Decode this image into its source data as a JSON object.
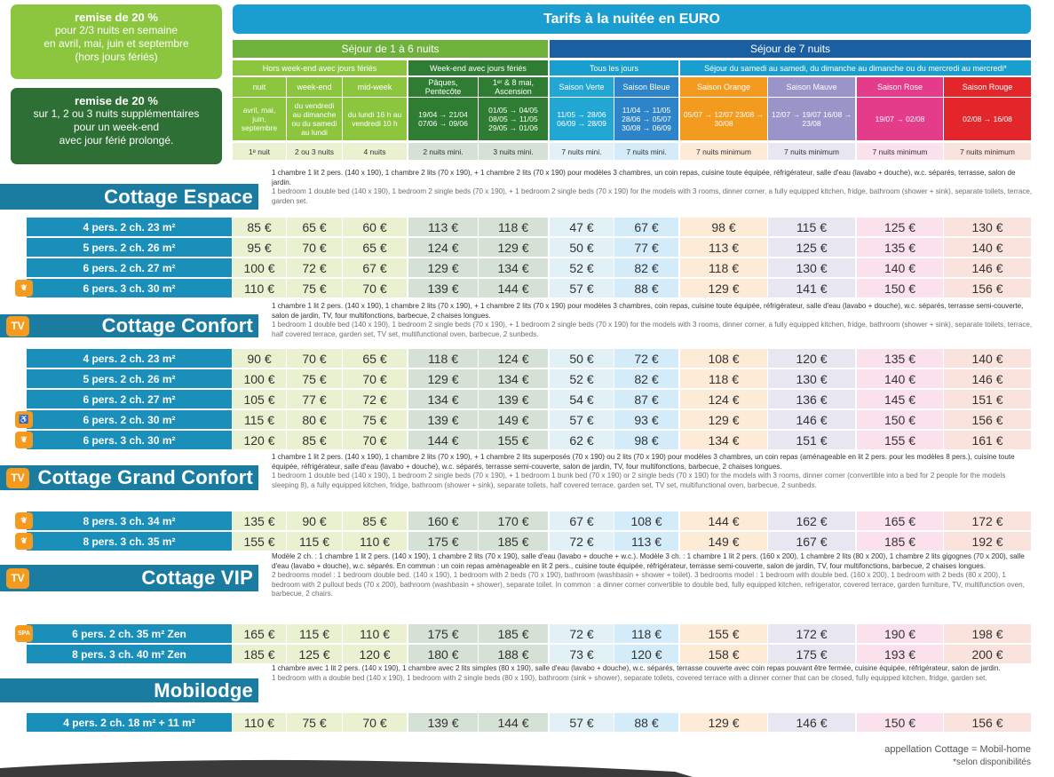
{
  "promo1": {
    "title": "remise de 20 %",
    "lines": [
      "pour 2/3 nuits en semaine",
      "en avril, mai, juin et septembre",
      "(hors jours fériés)"
    ]
  },
  "promo2": {
    "title": "remise de 20 %",
    "lines": [
      "sur 1, 2 ou 3 nuits supplémentaires",
      "pour un week-end",
      "avec jour férié prolongé."
    ]
  },
  "header": {
    "title": "Tarifs à la nuitée en EURO",
    "group1": "Séjour de 1 à 6 nuits",
    "group2": "Séjour de 7 nuits",
    "sub1": "Hors week-end avec jours fériés",
    "sub2": "Week-end avec jours fériés",
    "sub3": "Tous les jours",
    "sub4": "Séjour du samedi au samedi, du dimanche au dimanche ou du mercredi au mercredi*"
  },
  "columns": [
    {
      "name": "nuit",
      "period": "avril, mai, juin, septembre",
      "minimum": "1ᵉ nuit"
    },
    {
      "name": "week-end",
      "period": "du vendredi au dimanche ou du samedi au lundi",
      "minimum": "2 ou 3 nuits"
    },
    {
      "name": "mid-week",
      "period": "du lundi 16 h au vendredi 10 h",
      "minimum": "4 nuits"
    },
    {
      "name": "Pâques, Pentecôte",
      "period": "19/04 → 21/04 07/06 → 09/06",
      "minimum": "2 nuits mini."
    },
    {
      "name": "1ᵉʳ & 8 mai, Ascension",
      "period": "01/05 → 04/05 08/05 → 11/05 29/05 → 01/06",
      "minimum": "3 nuits mini."
    },
    {
      "name": "Saison Verte",
      "period": "11/05 → 28/06 06/09 → 28/09",
      "minimum": "7 nuits mini."
    },
    {
      "name": "Saison Bleue",
      "period": "11/04 → 11/05 28/06 → 05/07 30/08 → 06/09",
      "minimum": "7 nuits mini."
    },
    {
      "name": "Saison Orange",
      "period": "05/07 → 12/07 23/08 → 30/08",
      "minimum": "7 nuits minimum"
    },
    {
      "name": "Saison Mauve",
      "period": "12/07 → 19/07 16/08 → 23/08",
      "minimum": "7 nuits minimum"
    },
    {
      "name": "Saison Rose",
      "period": "19/07 → 02/08",
      "minimum": "7 nuits minimum"
    },
    {
      "name": "Saison Rouge",
      "period": "02/08 → 16/08",
      "minimum": "7 nuits minimum"
    }
  ],
  "sections": [
    {
      "title": "Cottage Espace",
      "tv": "",
      "desc_fr": "1 chambre 1 lit 2 pers. (140 x 190), 1 chambre 2 lits (70 x 190), + 1 chambre 2 lits (70 x 190) pour modèles 3 chambres, un coin repas, cuisine toute équipée, réfrigérateur, salle d'eau (lavabo + douche), w.c. séparés, terrasse, salon de jardin.",
      "desc_en": "1 bedroom 1 double bed (140 x 190), 1 bedroom 2 single beds (70 x 190), + 1 bedroom 2 single beds (70 x 190) for the models with 3 rooms, dinner corner, a fully equipped kitchen, fridge, bathroom (shower + sink), separate toilets, terrace, garden set.",
      "rows": [
        {
          "label": "4 pers. 2 ch. 23 m²",
          "icon": "",
          "prices": [
            "85 €",
            "65 €",
            "60 €",
            "113 €",
            "118 €",
            "47 €",
            "67 €",
            "98 €",
            "115 €",
            "125 €",
            "130 €"
          ]
        },
        {
          "label": "5 pers. 2 ch. 26 m²",
          "icon": "",
          "prices": [
            "95 €",
            "70 €",
            "65 €",
            "124 €",
            "129 €",
            "50 €",
            "77 €",
            "113 €",
            "125 €",
            "135 €",
            "140 €"
          ]
        },
        {
          "label": "6 pers. 2 ch. 27 m²",
          "icon": "",
          "prices": [
            "100 €",
            "72 €",
            "67 €",
            "129 €",
            "134 €",
            "52 €",
            "82 €",
            "118 €",
            "130 €",
            "140 €",
            "146 €"
          ]
        },
        {
          "label": "6 pers. 3 ch. 30 m²",
          "icon": "leaf",
          "prices": [
            "110 €",
            "75 €",
            "70 €",
            "139 €",
            "144 €",
            "57 €",
            "88 €",
            "129 €",
            "141 €",
            "150 €",
            "156 €"
          ]
        }
      ]
    },
    {
      "title": "Cottage Confort",
      "tv": "TV",
      "desc_fr": "1 chambre 1 lit 2 pers. (140 x 190), 1 chambre 2 lits (70 x 190), + 1 chambre 2 lits (70 x 190) pour modèles 3 chambres, coin repas, cuisine toute équipée, réfrigérateur, salle d'eau (lavabo + douche), w.c. séparés, terrasse semi-couverte, salon de jardin, TV, four multifonctions, barbecue, 2 chaises longues.",
      "desc_en": "1 bedroom 1 double bed (140 x 190), 1 bedroom 2 single beds (70 x 190), + 1 bedroom 2 single beds (70 x 190) for the models with 3 rooms, dinner corner, a fully equipped kitchen, fridge, bathroom (shower + sink), separate toilets, terrace, half covered terrace, garden set, TV set, multifunctional oven, barbecue, 2 sunbeds.",
      "rows": [
        {
          "label": "4 pers. 2 ch. 23 m²",
          "icon": "",
          "prices": [
            "90 €",
            "70 €",
            "65 €",
            "118 €",
            "124 €",
            "50 €",
            "72 €",
            "108 €",
            "120 €",
            "135 €",
            "140 €"
          ]
        },
        {
          "label": "5 pers. 2 ch. 26 m²",
          "icon": "",
          "prices": [
            "100 €",
            "75 €",
            "70 €",
            "129 €",
            "134 €",
            "52 €",
            "82 €",
            "118 €",
            "130 €",
            "140 €",
            "146 €"
          ]
        },
        {
          "label": "6 pers. 2 ch. 27 m²",
          "icon": "",
          "prices": [
            "105 €",
            "77 €",
            "72 €",
            "134 €",
            "139 €",
            "54 €",
            "87 €",
            "124 €",
            "136 €",
            "145 €",
            "151 €"
          ]
        },
        {
          "label": "6 pers. 2 ch. 30 m²",
          "icon": "wheelchair",
          "prices": [
            "115 €",
            "80 €",
            "75 €",
            "139 €",
            "149 €",
            "57 €",
            "93 €",
            "129 €",
            "146 €",
            "150 €",
            "156 €"
          ]
        },
        {
          "label": "6 pers. 3 ch. 30 m²",
          "icon": "leaf",
          "prices": [
            "120 €",
            "85 €",
            "70 €",
            "144 €",
            "155 €",
            "62 €",
            "98 €",
            "134 €",
            "151 €",
            "155 €",
            "161 €"
          ]
        }
      ]
    },
    {
      "title": "Cottage Grand Confort",
      "tv": "TV",
      "desc_fr": "1 chambre 1 lit 2 pers. (140 x 190), 1 chambre 2 lits (70 x 190), + 1 chambre 2 lits superposés (70 x 190) ou 2 lits (70 x 190) pour modèles 3 chambres, un coin repas (aménageable en lit 2 pers. pour les modèles 8 pers.), cuisine toute équipée, réfrigérateur, salle d'eau (lavabo + douche), w.c. séparés, terrasse semi-couverte, salon de jardin, TV, four multifonctions, barbecue, 2 chaises longues.",
      "desc_en": "1 bedroom 1 double bed (140 x 190), 1 bedroom 2 single beds (70 x 190), + 1 bedroom 1 bunk bed (70 x 190) or 2 single beds (70 x 190) for the models with 3 rooms, dinner corner (convertible into a bed for 2 people for the models sleeping 8), a fully equipped kitchen, fridge, bathroom (shower + sink), separate toilets, half covered terrace, garden set, TV set, multifunctional oven, barbecue, 2 sunbeds.",
      "rows": [
        {
          "label": "8 pers. 3 ch. 34 m²",
          "icon": "leaf",
          "prices": [
            "135 €",
            "90 €",
            "85 €",
            "160 €",
            "170 €",
            "67 €",
            "108 €",
            "144 €",
            "162 €",
            "165 €",
            "172 €"
          ]
        },
        {
          "label": "8 pers. 3 ch. 35 m²",
          "icon": "leaf",
          "prices": [
            "155 €",
            "115 €",
            "110 €",
            "175 €",
            "185 €",
            "72 €",
            "113 €",
            "149 €",
            "167 €",
            "185 €",
            "192 €"
          ]
        }
      ]
    },
    {
      "title": "Cottage VIP",
      "tv": "TV",
      "desc_fr": "Modèle 2 ch. : 1 chambre 1 lit 2 pers. (140 x 190), 1 chambre 2 lits (70 x 190), salle d'eau (lavabo + douche + w.c.). Modèle 3 ch. : 1 chambre 1 lit 2 pers. (160 x 200), 1 chambre 2 lits (80 x 200), 1 chambre 2 lits gigognes (70 x 200), salle d'eau (lavabo + douche), w.c. séparés. En commun : un coin repas aménageable en lit 2 pers., cuisine toute équipée, réfrigérateur, terrasse semi-couverte, salon de jardin, TV, four multifonctions, barbecue, 2 chaises longues.",
      "desc_en": "2 bedrooms model : 1 bedroom double bed. (140 x 190), 1 bedroom with 2 beds (70 x 190), bathroom (washbasin + shower + toilet). 3 bedrooms model : 1 bedroom with double bed. (160 x 200), 1 bedroom with 2 beds (80 x 200), 1 bedroom with 2 pullout beds (70 x 200), bathroom (washbasin + shower), separate toilet. In common : a dinner corner convertible to double bed, fully equipped kitchen, refrigerator, covered terrace, garden furniture, TV, multifunction oven, barbecue, 2 chairs.",
      "rows": [
        {
          "label": "6 pers. 2 ch. 35 m² Zen",
          "icon": "spa",
          "prices": [
            "165 €",
            "115 €",
            "110 €",
            "175 €",
            "185 €",
            "72 €",
            "118 €",
            "155 €",
            "172 €",
            "190 €",
            "198 €"
          ]
        },
        {
          "label": "8 pers. 3 ch. 40 m² Zen",
          "icon": "",
          "prices": [
            "185 €",
            "125 €",
            "120 €",
            "180 €",
            "188 €",
            "73 €",
            "120 €",
            "158 €",
            "175 €",
            "193 €",
            "200 €"
          ]
        }
      ]
    },
    {
      "title": "Mobilodge",
      "tv": "",
      "desc_fr": "1 chambre avec 1 lit 2 pers. (140 x 190), 1 chambre avec 2 lits simples (80 x 190), salle d'eau (lavabo + douche), w.c. séparés, terrasse couverte avec coin repas pouvant être fermée, cuisine équipée, réfrigérateur, salon de jardin.",
      "desc_en": "1 bedroom with a double bed (140 x 190), 1 bedroom with 2 single beds (80 x 190), bathroom (sink + shower), separate toilets, covered terrace with a dinner corner that can be closed, fully equipped kitchen, fridge, garden set.",
      "rows": [
        {
          "label": "4 pers. 2 ch. 18 m² + 11 m²",
          "icon": "",
          "prices": [
            "110 €",
            "75 €",
            "70 €",
            "139 €",
            "144 €",
            "57 €",
            "88 €",
            "129 €",
            "146 €",
            "150 €",
            "156 €"
          ]
        }
      ]
    }
  ],
  "footer": {
    "note1": "appellation Cottage = Mobil-home",
    "note2": "*selon disponibilités"
  },
  "colors": {
    "cols": [
      "#eaf1d0",
      "#eaf1d0",
      "#eaf1d0",
      "#d6e1d6",
      "#d6e1d6",
      "#e1f1f6",
      "#d4ecf9",
      "#fdebd8",
      "#e7e6f1",
      "#fbe1ec",
      "#fbe3dd"
    ],
    "headers": [
      "#8cc63f",
      "#8cc63f",
      "#8cc63f",
      "#2e7d32",
      "#2e7d32",
      "#22a7d4",
      "#2e84c9",
      "#f39b1f",
      "#9b94c9",
      "#e43c8a",
      "#e2262a"
    ]
  }
}
